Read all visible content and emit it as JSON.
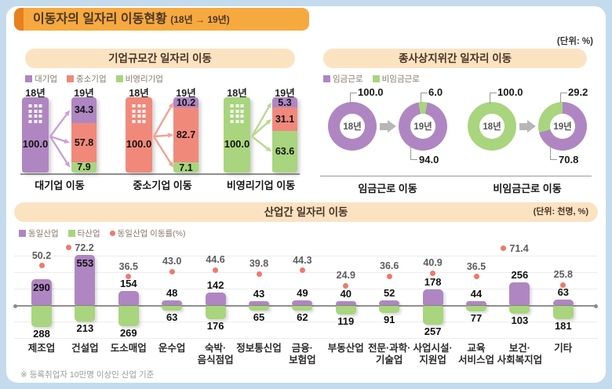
{
  "header": {
    "title": "이동자의 일자리 이동현황",
    "subtitle": "(18년 → 19년)",
    "unit_note": "(단위: %)"
  },
  "colors": {
    "purple": "#af86c2",
    "salmon": "#f1897b",
    "green": "#a9d57e",
    "red": "#f0796b",
    "arrow_purple": "#c9a0d4",
    "arrow_salmon": "#f5a091",
    "arrow_green": "#bada90"
  },
  "category_colors": {
    "대기업": "purple",
    "중소기업": "salmon",
    "비영리기업": "green",
    "임금근로": "purple",
    "비임금근로": "green",
    "동일산업": "purple",
    "타산업": "green",
    "동일산업 이동률(%)": "red"
  },
  "industry_panel": {
    "unit_note": "(단위: 천명, %)",
    "footnote": "※ 등록취업자 10만명 이상인 산업 기준",
    "categories_display": [
      [
        "제조업"
      ],
      [
        "건설업"
      ],
      [
        "도소매업"
      ],
      [
        "운수업"
      ],
      [
        "숙박·",
        "음식점업"
      ],
      [
        "정보통신업"
      ],
      [
        "금융·",
        "보험업"
      ],
      [
        "부동산업"
      ],
      [
        "전문·과학·",
        "기술업"
      ],
      [
        "사업시설·",
        "지원업"
      ],
      [
        "교육",
        "서비스업"
      ],
      [
        "보건·",
        "사회복지업"
      ],
      [
        "기타"
      ]
    ],
    "label_inside_indices": [
      0,
      1
    ],
    "dot_side_indices": [
      1,
      11
    ]
  },
  "chart_data": [
    {
      "type": "bar",
      "subtype": "stacked-flow",
      "title": "기업규모간 일자리 이동",
      "unit": "%",
      "years": [
        "18년",
        "19년"
      ],
      "legend": [
        "대기업",
        "중소기업",
        "비영리기업"
      ],
      "groups": [
        {
          "label": "대기업 이동",
          "from": {
            "year": "18년",
            "category": "대기업",
            "value": 100.0
          },
          "to": {
            "year": "19년",
            "segments": [
              {
                "category": "대기업",
                "value": 34.3
              },
              {
                "category": "중소기업",
                "value": 57.8
              },
              {
                "category": "비영리기업",
                "value": 7.9
              }
            ]
          }
        },
        {
          "label": "중소기업 이동",
          "from": {
            "year": "18년",
            "category": "중소기업",
            "value": 100.0
          },
          "to": {
            "year": "19년",
            "segments": [
              {
                "category": "대기업",
                "value": 10.2
              },
              {
                "category": "중소기업",
                "value": 82.7
              },
              {
                "category": "비영리기업",
                "value": 7.1
              }
            ]
          }
        },
        {
          "label": "비영리기업 이동",
          "from": {
            "year": "18년",
            "category": "비영리기업",
            "value": 100.0
          },
          "to": {
            "year": "19년",
            "segments": [
              {
                "category": "대기업",
                "value": 5.3
              },
              {
                "category": "중소기업",
                "value": 31.1
              },
              {
                "category": "비영리기업",
                "value": 63.6
              }
            ]
          }
        }
      ]
    },
    {
      "type": "pie",
      "subtype": "donut-flow",
      "title": "종사상지위간 일자리 이동",
      "unit": "%",
      "years": [
        "18년",
        "19년"
      ],
      "legend": [
        "임금근로",
        "비임금근로"
      ],
      "pairs": [
        {
          "label": "임금근로 이동",
          "from": {
            "year": "18년",
            "slices": [
              {
                "category": "임금근로",
                "value": 100.0
              }
            ]
          },
          "to": {
            "year": "19년",
            "slices": [
              {
                "category": "비임금근로",
                "value": 6.0,
                "callout": "top"
              },
              {
                "category": "임금근로",
                "value": 94.0,
                "callout": "bottom"
              }
            ]
          }
        },
        {
          "label": "비임금근로 이동",
          "from": {
            "year": "18년",
            "slices": [
              {
                "category": "비임금근로",
                "value": 100.0
              }
            ]
          },
          "to": {
            "year": "19년",
            "slices": [
              {
                "category": "비임금근로",
                "value": 29.2,
                "callout": "top"
              },
              {
                "category": "임금근로",
                "value": 70.8,
                "callout": "bottom"
              }
            ]
          }
        }
      ]
    },
    {
      "type": "bar",
      "subtype": "diverging",
      "title": "산업간 일자리 이동",
      "unit": "천명, %",
      "categories": [
        "제조업",
        "건설업",
        "도소매업",
        "운수업",
        "숙박·음식점업",
        "정보통신업",
        "금융·보험업",
        "부동산업",
        "전문·과학·기술업",
        "사업시설·지원업",
        "교육서비스업",
        "보건·사회복지업",
        "기타"
      ],
      "series": [
        {
          "name": "동일산업",
          "values": [
            290,
            553,
            154,
            48,
            142,
            43,
            49,
            40,
            52,
            178,
            44,
            256,
            63
          ]
        },
        {
          "name": "타산업",
          "values": [
            288,
            213,
            269,
            63,
            176,
            65,
            62,
            119,
            91,
            257,
            77,
            103,
            181
          ]
        },
        {
          "name": "동일산업 이동률(%)",
          "values": [
            50.2,
            72.2,
            36.5,
            43.0,
            44.6,
            39.8,
            44.3,
            24.9,
            36.6,
            40.9,
            36.5,
            71.4,
            25.8
          ]
        }
      ]
    }
  ]
}
